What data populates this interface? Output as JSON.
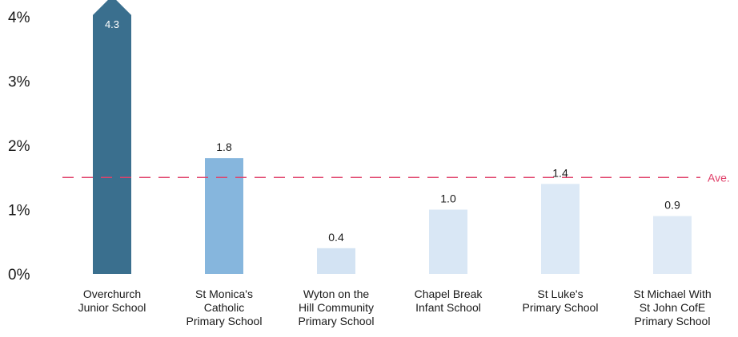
{
  "chart_data": {
    "type": "bar",
    "title": "",
    "xlabel": "",
    "ylabel": "",
    "ylim": [
      0,
      4.3
    ],
    "yticks": [
      "0%",
      "1%",
      "2%",
      "3%",
      "4%"
    ],
    "ytick_values": [
      0,
      1,
      2,
      3,
      4
    ],
    "categories": [
      [
        "Overchurch",
        "Junior School"
      ],
      [
        "St Monica's",
        "Catholic",
        "Primary School"
      ],
      [
        "Wyton on the",
        "Hill Community",
        "Primary School"
      ],
      [
        "Chapel Break",
        "Infant School"
      ],
      [
        "St Luke's",
        "Primary School"
      ],
      [
        "St Michael With",
        "St John CofE",
        "Primary School"
      ]
    ],
    "values": [
      4.3,
      1.8,
      0.4,
      1.0,
      1.4,
      0.9
    ],
    "data_labels": [
      "4.3",
      "1.8",
      "0.4",
      "1.0",
      "1.4",
      "0.9"
    ],
    "bar_colors": [
      "#3a6f8e",
      "#86b6dd",
      "#d3e3f3",
      "#d9e7f5",
      "#dce9f6",
      "#dfeaf6"
    ],
    "reference_line": {
      "value": 1.5,
      "label": "Ave.",
      "color": "#e0406a",
      "style": "dashed"
    },
    "grid": false,
    "legend": "none"
  }
}
